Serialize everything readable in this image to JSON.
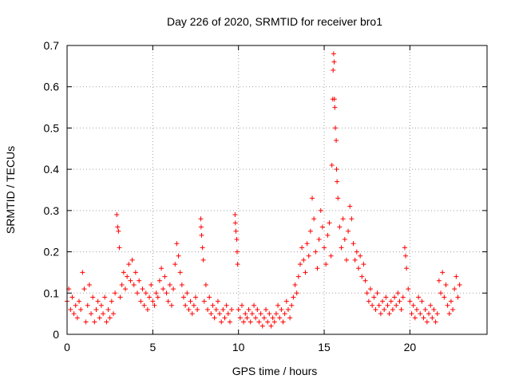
{
  "chart_data": {
    "type": "scatter",
    "title": "Day 226 of 2020, SRMTID for receiver bro1",
    "xlabel": "GPS time / hours",
    "ylabel": "SRMTID / TECUs",
    "xlim": [
      0,
      24.5
    ],
    "ylim": [
      0,
      0.7
    ],
    "xticks": [
      0,
      5,
      10,
      15,
      20
    ],
    "xtick_labels": [
      "0",
      "5",
      "10",
      "15",
      "20"
    ],
    "yticks": [
      0,
      0.1,
      0.2,
      0.3,
      0.4,
      0.5,
      0.6,
      0.7
    ],
    "ytick_labels": [
      "0",
      "0.1",
      "0.2",
      "0.3",
      "0.4",
      "0.5",
      "0.6",
      "0.7"
    ],
    "grid": true,
    "marker": "+",
    "series": [
      {
        "name": "SRMTID",
        "color": "#ff0000",
        "points": [
          [
            0.0,
            0.08
          ],
          [
            0.1,
            0.11
          ],
          [
            0.2,
            0.06
          ],
          [
            0.3,
            0.09
          ],
          [
            0.4,
            0.05
          ],
          [
            0.5,
            0.07
          ],
          [
            0.6,
            0.04
          ],
          [
            0.7,
            0.08
          ],
          [
            0.8,
            0.06
          ],
          [
            0.9,
            0.15
          ],
          [
            1.0,
            0.11
          ],
          [
            1.1,
            0.03
          ],
          [
            1.2,
            0.07
          ],
          [
            1.3,
            0.12
          ],
          [
            1.4,
            0.05
          ],
          [
            1.5,
            0.09
          ],
          [
            1.6,
            0.03
          ],
          [
            1.7,
            0.06
          ],
          [
            1.8,
            0.08
          ],
          [
            1.9,
            0.04
          ],
          [
            2.0,
            0.07
          ],
          [
            2.1,
            0.05
          ],
          [
            2.2,
            0.09
          ],
          [
            2.3,
            0.03
          ],
          [
            2.4,
            0.06
          ],
          [
            2.5,
            0.04
          ],
          [
            2.6,
            0.08
          ],
          [
            2.7,
            0.05
          ],
          [
            2.8,
            0.1
          ],
          [
            2.9,
            0.29
          ],
          [
            2.95,
            0.26
          ],
          [
            3.0,
            0.25
          ],
          [
            3.05,
            0.21
          ],
          [
            3.1,
            0.09
          ],
          [
            3.2,
            0.12
          ],
          [
            3.3,
            0.15
          ],
          [
            3.4,
            0.11
          ],
          [
            3.5,
            0.14
          ],
          [
            3.6,
            0.17
          ],
          [
            3.7,
            0.13
          ],
          [
            3.8,
            0.18
          ],
          [
            3.9,
            0.12
          ],
          [
            4.0,
            0.15
          ],
          [
            4.1,
            0.1
          ],
          [
            4.2,
            0.13
          ],
          [
            4.3,
            0.08
          ],
          [
            4.4,
            0.11
          ],
          [
            4.5,
            0.07
          ],
          [
            4.6,
            0.1
          ],
          [
            4.7,
            0.06
          ],
          [
            4.8,
            0.09
          ],
          [
            4.9,
            0.12
          ],
          [
            5.0,
            0.08
          ],
          [
            5.1,
            0.07
          ],
          [
            5.2,
            0.1
          ],
          [
            5.3,
            0.09
          ],
          [
            5.4,
            0.13
          ],
          [
            5.5,
            0.16
          ],
          [
            5.6,
            0.11
          ],
          [
            5.7,
            0.14
          ],
          [
            5.8,
            0.1
          ],
          [
            5.9,
            0.08
          ],
          [
            6.0,
            0.12
          ],
          [
            6.1,
            0.07
          ],
          [
            6.2,
            0.11
          ],
          [
            6.3,
            0.17
          ],
          [
            6.4,
            0.22
          ],
          [
            6.5,
            0.19
          ],
          [
            6.6,
            0.15
          ],
          [
            6.7,
            0.12
          ],
          [
            6.8,
            0.09
          ],
          [
            6.9,
            0.07
          ],
          [
            7.0,
            0.1
          ],
          [
            7.1,
            0.06
          ],
          [
            7.2,
            0.08
          ],
          [
            7.3,
            0.05
          ],
          [
            7.4,
            0.07
          ],
          [
            7.5,
            0.09
          ],
          [
            7.6,
            0.06
          ],
          [
            7.8,
            0.28
          ],
          [
            7.82,
            0.26
          ],
          [
            7.85,
            0.24
          ],
          [
            7.9,
            0.21
          ],
          [
            7.95,
            0.18
          ],
          [
            8.0,
            0.08
          ],
          [
            8.1,
            0.12
          ],
          [
            8.2,
            0.06
          ],
          [
            8.3,
            0.09
          ],
          [
            8.4,
            0.05
          ],
          [
            8.5,
            0.07
          ],
          [
            8.6,
            0.04
          ],
          [
            8.7,
            0.06
          ],
          [
            8.8,
            0.08
          ],
          [
            8.9,
            0.05
          ],
          [
            9.0,
            0.03
          ],
          [
            9.1,
            0.06
          ],
          [
            9.2,
            0.04
          ],
          [
            9.3,
            0.07
          ],
          [
            9.4,
            0.05
          ],
          [
            9.5,
            0.03
          ],
          [
            9.6,
            0.06
          ],
          [
            9.8,
            0.29
          ],
          [
            9.82,
            0.27
          ],
          [
            9.85,
            0.25
          ],
          [
            9.9,
            0.23
          ],
          [
            9.92,
            0.2
          ],
          [
            9.95,
            0.17
          ],
          [
            10.0,
            0.06
          ],
          [
            10.1,
            0.04
          ],
          [
            10.2,
            0.07
          ],
          [
            10.3,
            0.03
          ],
          [
            10.4,
            0.05
          ],
          [
            10.5,
            0.04
          ],
          [
            10.6,
            0.06
          ],
          [
            10.7,
            0.03
          ],
          [
            10.8,
            0.05
          ],
          [
            10.9,
            0.07
          ],
          [
            11.0,
            0.04
          ],
          [
            11.1,
            0.06
          ],
          [
            11.2,
            0.03
          ],
          [
            11.3,
            0.05
          ],
          [
            11.4,
            0.02
          ],
          [
            11.5,
            0.04
          ],
          [
            11.6,
            0.06
          ],
          [
            11.7,
            0.03
          ],
          [
            11.8,
            0.05
          ],
          [
            11.9,
            0.02
          ],
          [
            12.0,
            0.04
          ],
          [
            12.1,
            0.03
          ],
          [
            12.2,
            0.05
          ],
          [
            12.3,
            0.07
          ],
          [
            12.4,
            0.04
          ],
          [
            12.5,
            0.06
          ],
          [
            12.6,
            0.03
          ],
          [
            12.7,
            0.05
          ],
          [
            12.8,
            0.08
          ],
          [
            12.9,
            0.06
          ],
          [
            13.0,
            0.04
          ],
          [
            13.1,
            0.07
          ],
          [
            13.2,
            0.09
          ],
          [
            13.3,
            0.12
          ],
          [
            13.4,
            0.1
          ],
          [
            13.5,
            0.14
          ],
          [
            13.6,
            0.17
          ],
          [
            13.7,
            0.21
          ],
          [
            13.8,
            0.18
          ],
          [
            13.9,
            0.15
          ],
          [
            14.0,
            0.22
          ],
          [
            14.1,
            0.19
          ],
          [
            14.2,
            0.25
          ],
          [
            14.3,
            0.33
          ],
          [
            14.4,
            0.28
          ],
          [
            14.5,
            0.2
          ],
          [
            14.6,
            0.16
          ],
          [
            14.7,
            0.23
          ],
          [
            14.8,
            0.3
          ],
          [
            14.9,
            0.26
          ],
          [
            15.0,
            0.21
          ],
          [
            15.1,
            0.17
          ],
          [
            15.2,
            0.24
          ],
          [
            15.3,
            0.27
          ],
          [
            15.4,
            0.19
          ],
          [
            15.45,
            0.41
          ],
          [
            15.5,
            0.57
          ],
          [
            15.52,
            0.64
          ],
          [
            15.55,
            0.68
          ],
          [
            15.58,
            0.66
          ],
          [
            15.6,
            0.57
          ],
          [
            15.62,
            0.55
          ],
          [
            15.65,
            0.5
          ],
          [
            15.7,
            0.47
          ],
          [
            15.72,
            0.4
          ],
          [
            15.75,
            0.37
          ],
          [
            15.8,
            0.33
          ],
          [
            15.9,
            0.26
          ],
          [
            16.0,
            0.21
          ],
          [
            16.1,
            0.28
          ],
          [
            16.2,
            0.23
          ],
          [
            16.3,
            0.18
          ],
          [
            16.4,
            0.25
          ],
          [
            16.5,
            0.31
          ],
          [
            16.6,
            0.28
          ],
          [
            16.7,
            0.22
          ],
          [
            16.8,
            0.18
          ],
          [
            16.9,
            0.2
          ],
          [
            17.0,
            0.16
          ],
          [
            17.1,
            0.19
          ],
          [
            17.2,
            0.14
          ],
          [
            17.3,
            0.17
          ],
          [
            17.4,
            0.13
          ],
          [
            17.5,
            0.1
          ],
          [
            17.6,
            0.08
          ],
          [
            17.7,
            0.11
          ],
          [
            17.8,
            0.07
          ],
          [
            17.9,
            0.09
          ],
          [
            18.0,
            0.06
          ],
          [
            18.1,
            0.1
          ],
          [
            18.2,
            0.07
          ],
          [
            18.3,
            0.05
          ],
          [
            18.4,
            0.08
          ],
          [
            18.5,
            0.06
          ],
          [
            18.6,
            0.09
          ],
          [
            18.7,
            0.07
          ],
          [
            18.8,
            0.05
          ],
          [
            18.9,
            0.08
          ],
          [
            19.0,
            0.06
          ],
          [
            19.1,
            0.09
          ],
          [
            19.2,
            0.07
          ],
          [
            19.3,
            0.1
          ],
          [
            19.4,
            0.08
          ],
          [
            19.5,
            0.06
          ],
          [
            19.6,
            0.09
          ],
          [
            19.7,
            0.21
          ],
          [
            19.75,
            0.19
          ],
          [
            19.8,
            0.16
          ],
          [
            19.9,
            0.11
          ],
          [
            20.0,
            0.08
          ],
          [
            20.1,
            0.05
          ],
          [
            20.2,
            0.07
          ],
          [
            20.3,
            0.04
          ],
          [
            20.4,
            0.06
          ],
          [
            20.5,
            0.09
          ],
          [
            20.6,
            0.05
          ],
          [
            20.7,
            0.08
          ],
          [
            20.8,
            0.04
          ],
          [
            20.9,
            0.06
          ],
          [
            21.0,
            0.03
          ],
          [
            21.1,
            0.05
          ],
          [
            21.2,
            0.07
          ],
          [
            21.3,
            0.04
          ],
          [
            21.4,
            0.06
          ],
          [
            21.5,
            0.03
          ],
          [
            21.6,
            0.05
          ],
          [
            21.7,
            0.13
          ],
          [
            21.8,
            0.1
          ],
          [
            21.9,
            0.15
          ],
          [
            22.0,
            0.09
          ],
          [
            22.1,
            0.12
          ],
          [
            22.2,
            0.07
          ],
          [
            22.3,
            0.05
          ],
          [
            22.4,
            0.08
          ],
          [
            22.5,
            0.06
          ],
          [
            22.6,
            0.11
          ],
          [
            22.7,
            0.14
          ],
          [
            22.8,
            0.09
          ],
          [
            22.9,
            0.12
          ]
        ]
      }
    ]
  }
}
